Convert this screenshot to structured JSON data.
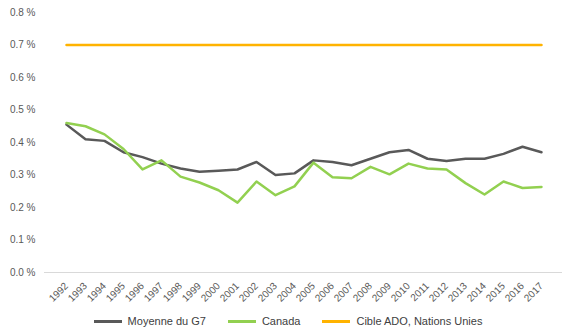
{
  "chart_data": {
    "type": "line",
    "categories": [
      "1992",
      "1993",
      "1994",
      "1995",
      "1996",
      "1997",
      "1998",
      "1999",
      "2000",
      "2001",
      "2002",
      "2003",
      "2004",
      "2005",
      "2006",
      "2007",
      "2008",
      "2009",
      "2010",
      "2011",
      "2012",
      "2013",
      "2014",
      "2015",
      "2016",
      "2017"
    ],
    "series": [
      {
        "name": "Moyenne du G7",
        "color": "#595959",
        "values": [
          0.455,
          0.41,
          0.405,
          0.37,
          0.355,
          0.335,
          0.32,
          0.31,
          0.313,
          0.317,
          0.34,
          0.3,
          0.305,
          0.345,
          0.34,
          0.33,
          0.35,
          0.37,
          0.377,
          0.35,
          0.343,
          0.35,
          0.35,
          0.365,
          0.387,
          0.37
        ]
      },
      {
        "name": "Canada",
        "color": "#92d050",
        "values": [
          0.46,
          0.45,
          0.425,
          0.38,
          0.317,
          0.345,
          0.295,
          0.277,
          0.253,
          0.215,
          0.28,
          0.238,
          0.265,
          0.338,
          0.293,
          0.29,
          0.325,
          0.302,
          0.335,
          0.32,
          0.317,
          0.275,
          0.24,
          0.28,
          0.26,
          0.263
        ]
      },
      {
        "name": "Cible ADO, Nations Unies",
        "color": "#ffb300",
        "values": [
          0.7,
          0.7,
          0.7,
          0.7,
          0.7,
          0.7,
          0.7,
          0.7,
          0.7,
          0.7,
          0.7,
          0.7,
          0.7,
          0.7,
          0.7,
          0.7,
          0.7,
          0.7,
          0.7,
          0.7,
          0.7,
          0.7,
          0.7,
          0.7,
          0.7,
          0.7
        ]
      }
    ],
    "ylim": [
      0,
      0.8
    ],
    "yticks": [
      {
        "value": 0,
        "label": "0.0 %"
      },
      {
        "value": 0.1,
        "label": "0.1 %"
      },
      {
        "value": 0.2,
        "label": "0.2 %"
      },
      {
        "value": 0.3,
        "label": "0.3 %"
      },
      {
        "value": 0.4,
        "label": "0.4 %"
      },
      {
        "value": 0.5,
        "label": "0.5 %"
      },
      {
        "value": 0.6,
        "label": "0.6 %"
      },
      {
        "value": 0.7,
        "label": "0.7 %"
      },
      {
        "value": 0.8,
        "label": "0.8 %"
      }
    ],
    "grid": false,
    "legend": "bottom"
  }
}
